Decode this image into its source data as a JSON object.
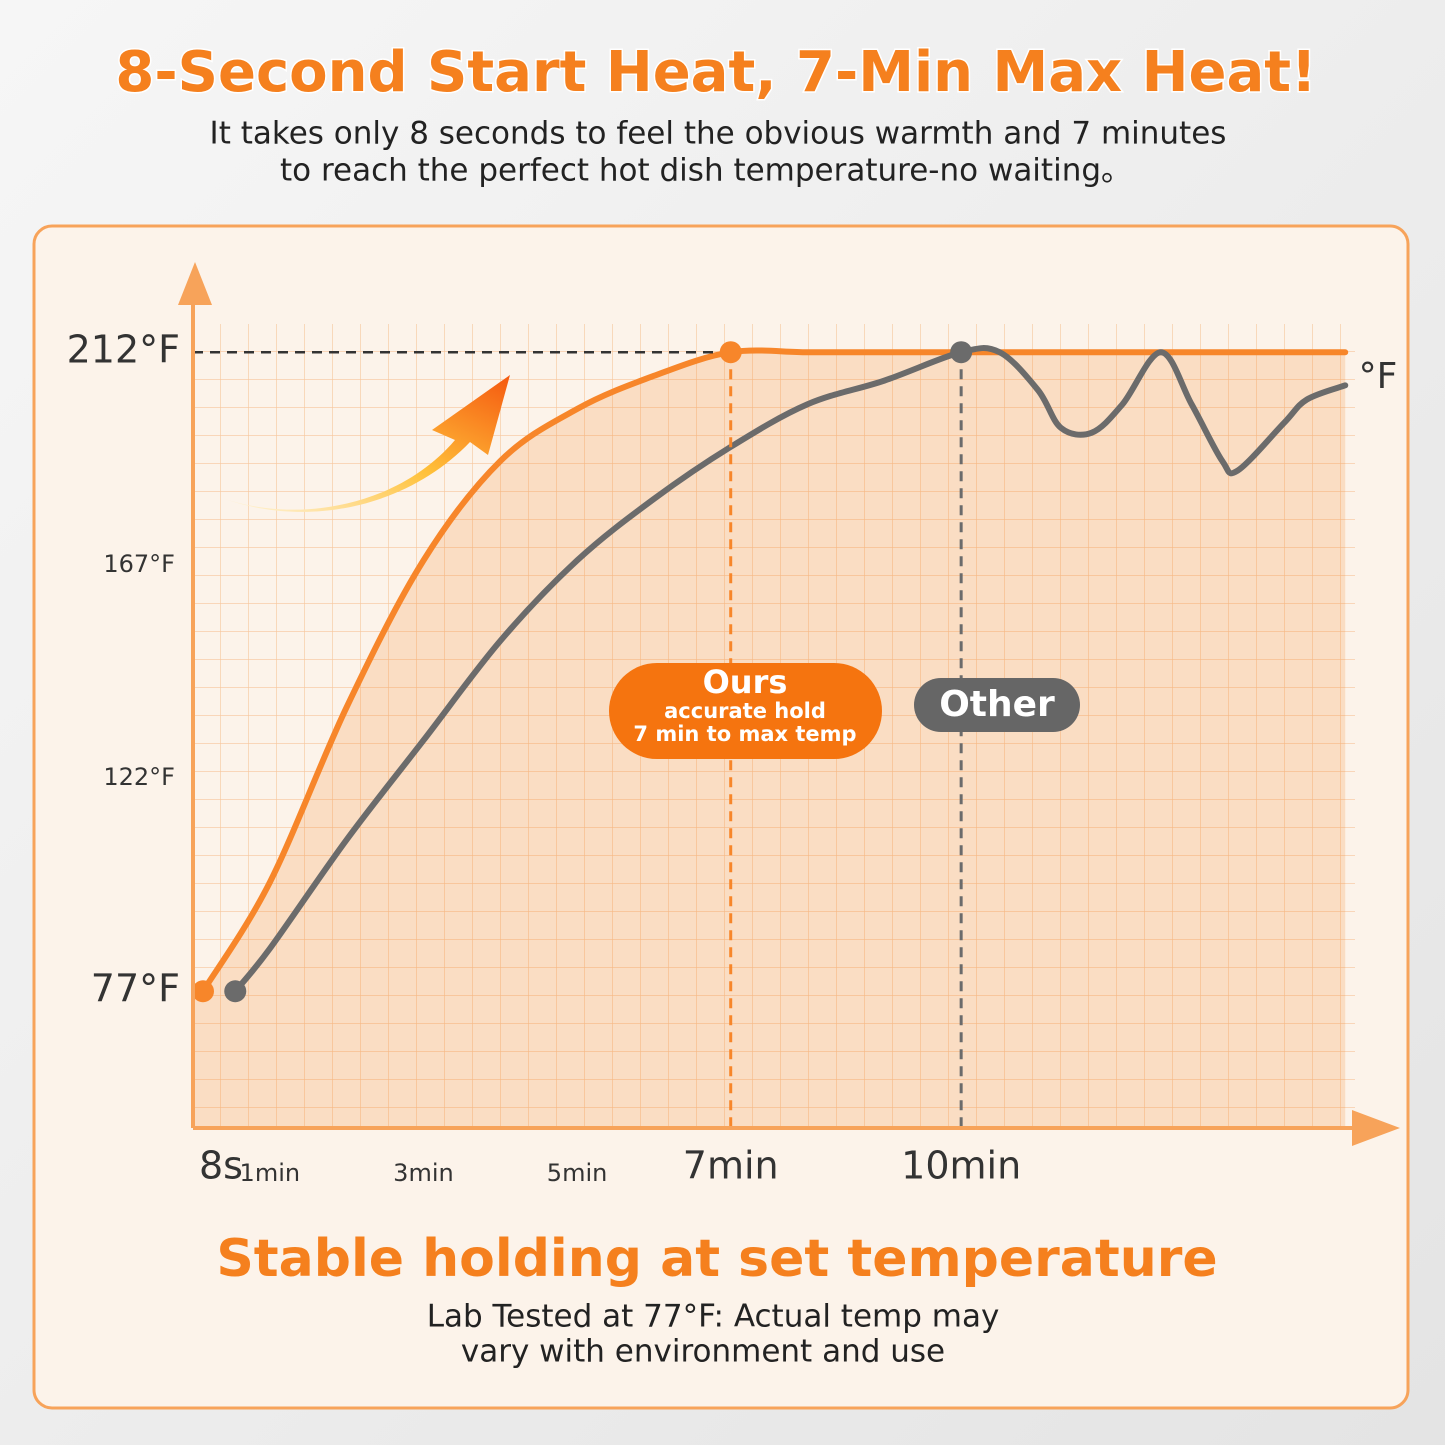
{
  "title": "8-Second Start Heat, 7-Min Max Heat!",
  "subtitle": [
    "It takes only 8 seconds to feel the obvious warmth and 7 minutes",
    "to reach the perfect hot dish temperature-no waiting。"
  ],
  "chart_data": {
    "type": "line",
    "y_unit": "°F",
    "xlim": [
      0,
      15.7
    ],
    "ylim": [
      48,
      230
    ],
    "xticks": [
      {
        "value": 0.13,
        "label": "8s"
      },
      {
        "value": 1,
        "label": "1min"
      },
      {
        "value": 3,
        "label": "3min"
      },
      {
        "value": 5,
        "label": "5min"
      },
      {
        "value": 7,
        "label": "7min"
      },
      {
        "value": 10,
        "label": "10min"
      }
    ],
    "yticks": [
      {
        "value": 77,
        "label": "77°F"
      },
      {
        "value": 122,
        "label": "122°F"
      },
      {
        "value": 167,
        "label": "167°F"
      },
      {
        "value": 212,
        "label": "212°F"
      }
    ],
    "series": [
      {
        "name": "Ours",
        "color": "#f7862a",
        "note": [
          "accurate hold",
          "7 min to max temp"
        ],
        "x": [
          0.13,
          1,
          2,
          3,
          4,
          5,
          6,
          7,
          8,
          9,
          10,
          11,
          12,
          13,
          14,
          15
        ],
        "values": [
          77,
          100,
          137,
          168,
          189,
          200,
          207,
          212,
          212,
          212,
          212,
          212,
          212,
          212,
          212,
          212
        ]
      },
      {
        "name": "Other",
        "color": "#6b6b6b",
        "x": [
          0.55,
          1,
          2,
          3,
          4,
          5,
          6,
          7,
          8,
          9,
          10,
          10.5,
          11,
          11.3,
          11.7,
          12.1,
          12.6,
          13,
          13.4,
          13.6,
          14.2,
          14.5,
          15
        ],
        "values": [
          77,
          86,
          109,
          130,
          151,
          168,
          181,
          192,
          201,
          206,
          212,
          212,
          204,
          196,
          195,
          201,
          212,
          201,
          189,
          187,
          197,
          202,
          205
        ]
      }
    ]
  },
  "footer": {
    "heading": "Stable holding at set temperature",
    "note": [
      "Lab Tested at 77°F: Actual temp may",
      "vary with environment and use"
    ]
  }
}
